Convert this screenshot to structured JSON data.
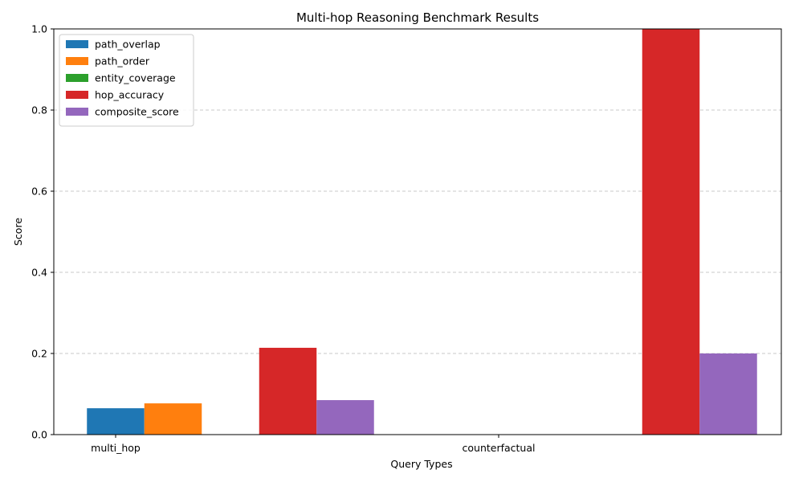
{
  "chart_data": {
    "type": "bar",
    "title": "Multi-hop Reasoning Benchmark Results",
    "xlabel": "Query Types",
    "ylabel": "Score",
    "ylim": [
      0,
      1.0
    ],
    "yticks": [
      "0.0",
      "0.2",
      "0.4",
      "0.6",
      "0.8",
      "1.0"
    ],
    "grid": "y-dashed",
    "legend_position": "top-left",
    "categories": [
      "multi_hop",
      "counterfactual"
    ],
    "series": [
      {
        "name": "path_overlap",
        "color": "#1f77b4",
        "values": [
          0.065,
          0.0
        ]
      },
      {
        "name": "path_order",
        "color": "#ff7f0e",
        "values": [
          0.077,
          0.0
        ]
      },
      {
        "name": "entity_coverage",
        "color": "#2ca02c",
        "values": [
          0.0,
          0.0
        ]
      },
      {
        "name": "hop_accuracy",
        "color": "#d62728",
        "values": [
          0.214,
          1.0
        ]
      },
      {
        "name": "composite_score",
        "color": "#9467bd",
        "values": [
          0.085,
          0.2
        ]
      }
    ]
  }
}
